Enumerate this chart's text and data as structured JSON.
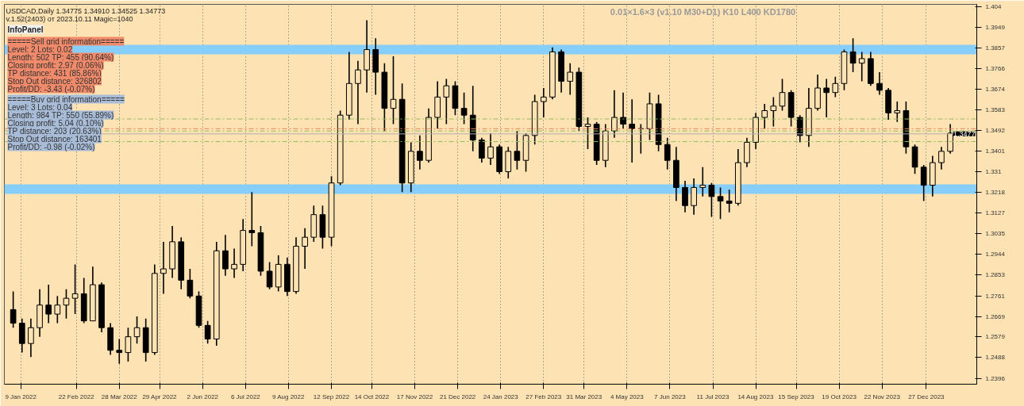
{
  "chart_data": {
    "type": "candlestick",
    "title": "USDCAD,Daily  1.34775 1.34910 1.34525 1.34773",
    "subtitle": "v.1.52(2403) от 2023.10.11 Magic=1040",
    "annotations": [
      "0.01×1.6×3 (v1.10 M30+D1) K10 L400 KD1780",
      "InfoPanel",
      "=====Sell grid information=====",
      "Level: 2 Lots: 0.02",
      "Length: 502 TP: 455 (90.64%)",
      "Closing profit: 2.97 (0.06%)",
      "TP distance: 431 (85.86%)",
      "Stop Out distance: 326802",
      "Profit/DD: -3.43 (-0.07%)",
      "=====Buy grid information=====",
      "Level: 3 Lots: 0.04",
      "Length: 984 TP: 550 (55.89%)",
      "Closing profit: 5.04 (0.10%)",
      "TP distance: 203 (20.63%)",
      "Stop Out distance: 163401",
      "Profit/DD: -0.98 (-0.02%)"
    ],
    "color": "#000000",
    "x": [
      "2022-01-03",
      "2022-01-10",
      "2022-01-17",
      "2022-01-24",
      "2022-01-31",
      "2022-02-07",
      "2022-02-14",
      "2022-02-21",
      "2022-02-28",
      "2022-03-07",
      "2022-03-14",
      "2022-03-21",
      "2022-03-28",
      "2022-04-04",
      "2022-04-11",
      "2022-04-18",
      "2022-04-25",
      "2022-05-02",
      "2022-05-09",
      "2022-05-16",
      "2022-05-23",
      "2022-05-30",
      "2022-06-06",
      "2022-06-13",
      "2022-06-20",
      "2022-06-27",
      "2022-07-04",
      "2022-07-11",
      "2022-07-18",
      "2022-07-25",
      "2022-08-01",
      "2022-08-08",
      "2022-08-15",
      "2022-08-22",
      "2022-08-29",
      "2022-09-05",
      "2022-09-12",
      "2022-09-19",
      "2022-09-26",
      "2022-10-03",
      "2022-10-10",
      "2022-10-17",
      "2022-10-24",
      "2022-10-31",
      "2022-11-07",
      "2022-11-14",
      "2022-11-21",
      "2022-11-28",
      "2022-12-05",
      "2022-12-12",
      "2022-12-19",
      "2022-12-26",
      "2023-01-02",
      "2023-01-09",
      "2023-01-16",
      "2023-01-23",
      "2023-01-30",
      "2023-02-06",
      "2023-02-13",
      "2023-02-20",
      "2023-02-27",
      "2023-03-06",
      "2023-03-13",
      "2023-03-20",
      "2023-03-27",
      "2023-04-03",
      "2023-04-10",
      "2023-04-17",
      "2023-04-24",
      "2023-05-01",
      "2023-05-08",
      "2023-05-15",
      "2023-05-22",
      "2023-05-29",
      "2023-06-05",
      "2023-06-12",
      "2023-06-19",
      "2023-06-26",
      "2023-07-03",
      "2023-07-10",
      "2023-07-17",
      "2023-07-24",
      "2023-07-31",
      "2023-08-07",
      "2023-08-14",
      "2023-08-21",
      "2023-08-28",
      "2023-09-04",
      "2023-09-11",
      "2023-09-18",
      "2023-09-25",
      "2023-10-02",
      "2023-10-09",
      "2023-10-16",
      "2023-10-23",
      "2023-10-30",
      "2023-11-06",
      "2023-11-13",
      "2023-11-20",
      "2023-11-27",
      "2023-12-04",
      "2023-12-11",
      "2023-12-18",
      "2023-12-25",
      "2024-01-01",
      "2024-01-08",
      "2024-01-15"
    ],
    "ohlc": [
      [
        1.27,
        1.278,
        1.262,
        1.264
      ],
      [
        1.264,
        1.266,
        1.251,
        1.255
      ],
      [
        1.255,
        1.266,
        1.249,
        1.262
      ],
      [
        1.262,
        1.279,
        1.258,
        1.272
      ],
      [
        1.272,
        1.281,
        1.264,
        1.268
      ],
      [
        1.268,
        1.276,
        1.264,
        1.272
      ],
      [
        1.272,
        1.279,
        1.266,
        1.275
      ],
      [
        1.275,
        1.29,
        1.268,
        1.277
      ],
      [
        1.277,
        1.284,
        1.264,
        1.265
      ],
      [
        1.265,
        1.289,
        1.265,
        1.281
      ],
      [
        1.281,
        1.282,
        1.26,
        1.262
      ],
      [
        1.262,
        1.264,
        1.25,
        1.252
      ],
      [
        1.252,
        1.257,
        1.246,
        1.251
      ],
      [
        1.251,
        1.262,
        1.247,
        1.258
      ],
      [
        1.258,
        1.267,
        1.255,
        1.262
      ],
      [
        1.262,
        1.266,
        1.247,
        1.251
      ],
      [
        1.251,
        1.29,
        1.25,
        1.286
      ],
      [
        1.286,
        1.3,
        1.277,
        1.288
      ],
      [
        1.288,
        1.307,
        1.284,
        1.3
      ],
      [
        1.3,
        1.302,
        1.279,
        1.283
      ],
      [
        1.283,
        1.288,
        1.275,
        1.276
      ],
      [
        1.276,
        1.278,
        1.262,
        1.263
      ],
      [
        1.263,
        1.265,
        1.255,
        1.257
      ],
      [
        1.257,
        1.3,
        1.254,
        1.296
      ],
      [
        1.296,
        1.303,
        1.285,
        1.288
      ],
      [
        1.288,
        1.297,
        1.284,
        1.29
      ],
      [
        1.29,
        1.31,
        1.287,
        1.305
      ],
      [
        1.305,
        1.322,
        1.298,
        1.304
      ],
      [
        1.304,
        1.307,
        1.285,
        1.287
      ],
      [
        1.287,
        1.291,
        1.279,
        1.28
      ],
      [
        1.28,
        1.294,
        1.278,
        1.29
      ],
      [
        1.29,
        1.293,
        1.276,
        1.278
      ],
      [
        1.278,
        1.302,
        1.277,
        1.298
      ],
      [
        1.298,
        1.306,
        1.288,
        1.302
      ],
      [
        1.302,
        1.316,
        1.3,
        1.312
      ],
      [
        1.312,
        1.316,
        1.297,
        1.302
      ],
      [
        1.302,
        1.329,
        1.298,
        1.326
      ],
      [
        1.326,
        1.358,
        1.325,
        1.356
      ],
      [
        1.356,
        1.384,
        1.354,
        1.37
      ],
      [
        1.37,
        1.38,
        1.352,
        1.376
      ],
      [
        1.376,
        1.398,
        1.366,
        1.385
      ],
      [
        1.385,
        1.39,
        1.365,
        1.375
      ],
      [
        1.375,
        1.379,
        1.349,
        1.359
      ],
      [
        1.359,
        1.382,
        1.352,
        1.363
      ],
      [
        1.363,
        1.37,
        1.322,
        1.326
      ],
      [
        1.326,
        1.344,
        1.322,
        1.34
      ],
      [
        1.34,
        1.347,
        1.332,
        1.336
      ],
      [
        1.336,
        1.359,
        1.335,
        1.355
      ],
      [
        1.355,
        1.371,
        1.35,
        1.364
      ],
      [
        1.364,
        1.372,
        1.352,
        1.369
      ],
      [
        1.369,
        1.371,
        1.356,
        1.359
      ],
      [
        1.359,
        1.366,
        1.352,
        1.356
      ],
      [
        1.356,
        1.369,
        1.34,
        1.345
      ],
      [
        1.345,
        1.346,
        1.335,
        1.337
      ],
      [
        1.337,
        1.348,
        1.334,
        1.342
      ],
      [
        1.342,
        1.343,
        1.33,
        1.331
      ],
      [
        1.331,
        1.342,
        1.328,
        1.34
      ],
      [
        1.34,
        1.349,
        1.332,
        1.336
      ],
      [
        1.336,
        1.348,
        1.331,
        1.347
      ],
      [
        1.347,
        1.365,
        1.343,
        1.362
      ],
      [
        1.362,
        1.368,
        1.355,
        1.364
      ],
      [
        1.364,
        1.386,
        1.363,
        1.384
      ],
      [
        1.384,
        1.385,
        1.366,
        1.371
      ],
      [
        1.371,
        1.379,
        1.365,
        1.375
      ],
      [
        1.375,
        1.377,
        1.349,
        1.351
      ],
      [
        1.351,
        1.355,
        1.341,
        1.352
      ],
      [
        1.352,
        1.353,
        1.334,
        1.336
      ],
      [
        1.336,
        1.352,
        1.333,
        1.349
      ],
      [
        1.349,
        1.367,
        1.346,
        1.355
      ],
      [
        1.355,
        1.366,
        1.35,
        1.352
      ],
      [
        1.352,
        1.363,
        1.335,
        1.35
      ],
      [
        1.35,
        1.352,
        1.339,
        1.35
      ],
      [
        1.35,
        1.366,
        1.345,
        1.361
      ],
      [
        1.361,
        1.365,
        1.34,
        1.343
      ],
      [
        1.343,
        1.346,
        1.332,
        1.336
      ],
      [
        1.336,
        1.342,
        1.318,
        1.324
      ],
      [
        1.324,
        1.327,
        1.313,
        1.316
      ],
      [
        1.316,
        1.328,
        1.312,
        1.324
      ],
      [
        1.324,
        1.333,
        1.32,
        1.325
      ],
      [
        1.325,
        1.326,
        1.311,
        1.32
      ],
      [
        1.32,
        1.324,
        1.31,
        1.318
      ],
      [
        1.318,
        1.323,
        1.313,
        1.317
      ],
      [
        1.317,
        1.341,
        1.316,
        1.335
      ],
      [
        1.335,
        1.346,
        1.333,
        1.344
      ],
      [
        1.344,
        1.357,
        1.341,
        1.355
      ],
      [
        1.355,
        1.361,
        1.35,
        1.358
      ],
      [
        1.358,
        1.364,
        1.351,
        1.36
      ],
      [
        1.36,
        1.372,
        1.358,
        1.366
      ],
      [
        1.366,
        1.367,
        1.351,
        1.355
      ],
      [
        1.355,
        1.356,
        1.344,
        1.347
      ],
      [
        1.347,
        1.368,
        1.342,
        1.359
      ],
      [
        1.359,
        1.374,
        1.358,
        1.368
      ],
      [
        1.368,
        1.372,
        1.355,
        1.366
      ],
      [
        1.366,
        1.373,
        1.364,
        1.37
      ],
      [
        1.37,
        1.385,
        1.367,
        1.384
      ],
      [
        1.384,
        1.39,
        1.375,
        1.379
      ],
      [
        1.379,
        1.384,
        1.371,
        1.381
      ],
      [
        1.381,
        1.384,
        1.369,
        1.37
      ],
      [
        1.37,
        1.375,
        1.365,
        1.367
      ],
      [
        1.367,
        1.368,
        1.354,
        1.357
      ],
      [
        1.357,
        1.362,
        1.353,
        1.358
      ],
      [
        1.358,
        1.362,
        1.339,
        1.342
      ],
      [
        1.342,
        1.343,
        1.33,
        1.333
      ],
      [
        1.333,
        1.334,
        1.318,
        1.325
      ],
      [
        1.325,
        1.338,
        1.32,
        1.335
      ],
      [
        1.335,
        1.342,
        1.332,
        1.34
      ],
      [
        1.34,
        1.352,
        1.339,
        1.348
      ]
    ],
    "xlim": [
      "2021-12-27",
      "2024-02-05"
    ],
    "xticks": [
      {
        "value": "2022-01-09",
        "label": "9 Jan 2022"
      },
      {
        "value": "2022-02-22",
        "label": "22 Feb 2022"
      },
      {
        "value": "2022-03-28",
        "label": "28 Mar 2022"
      },
      {
        "value": "2022-04-29",
        "label": "29 Apr 2022"
      },
      {
        "value": "2022-06-02",
        "label": "2 Jun 2022"
      },
      {
        "value": "2022-07-06",
        "label": "6 Jul 2022"
      },
      {
        "value": "2022-08-09",
        "label": "9 Aug 2022"
      },
      {
        "value": "2022-09-12",
        "label": "12 Sep 2022"
      },
      {
        "value": "2022-10-14",
        "label": "14 Oct 2022"
      },
      {
        "value": "2022-11-17",
        "label": "17 Nov 2022"
      },
      {
        "value": "2022-12-21",
        "label": "21 Dec 2022"
      },
      {
        "value": "2023-01-24",
        "label": "24 Jan 2023"
      },
      {
        "value": "2023-02-27",
        "label": "27 Feb 2023"
      },
      {
        "value": "2023-03-31",
        "label": "31 Mar 2023"
      },
      {
        "value": "2023-05-04",
        "label": "4 May 2023"
      },
      {
        "value": "2023-06-07",
        "label": "7 Jun 2023"
      },
      {
        "value": "2023-07-11",
        "label": "11 Jul 2023"
      },
      {
        "value": "2023-08-14",
        "label": "14 Aug 2023"
      },
      {
        "value": "2023-09-15",
        "label": "15 Sep 2023"
      },
      {
        "value": "2023-10-19",
        "label": "19 Oct 2023"
      },
      {
        "value": "2023-11-22",
        "label": "22 Nov 2023"
      },
      {
        "value": "2023-12-27",
        "label": "27 Dec 2023"
      }
    ],
    "ylim": [
      1.237,
      1.405
    ],
    "yticks": [
      1.404,
      1.3949,
      1.3857,
      1.3766,
      1.3674,
      1.3583,
      1.3492,
      1.3401,
      1.331,
      1.3218,
      1.3127,
      1.3035,
      1.2944,
      1.2853,
      1.2761,
      1.2669,
      1.2579,
      1.2488,
      1.2396
    ],
    "grid": "x",
    "bands": [
      {
        "axis": "y",
        "from": 1.3829,
        "to": 1.387,
        "color": "#87cefa"
      },
      {
        "axis": "y",
        "from": 1.3213,
        "to": 1.3253,
        "color": "#87cefa"
      }
    ],
    "ref_lines": [
      {
        "axis": "y",
        "value": 1.3543,
        "color": "#8fbc5a",
        "line_style": "dashed"
      },
      {
        "axis": "y",
        "value": 1.35,
        "color": "#e9805a",
        "line_style": "dashed"
      },
      {
        "axis": "y",
        "value": 1.349,
        "color": "#8fbc5a",
        "line_style": "dashed"
      },
      {
        "axis": "y",
        "value": 1.3443,
        "color": "#8fbc5a",
        "line_style": "dashed"
      },
      {
        "axis": "y",
        "value": 1.3477,
        "color": "#b0b0b0",
        "label": "1.3477"
      }
    ]
  }
}
